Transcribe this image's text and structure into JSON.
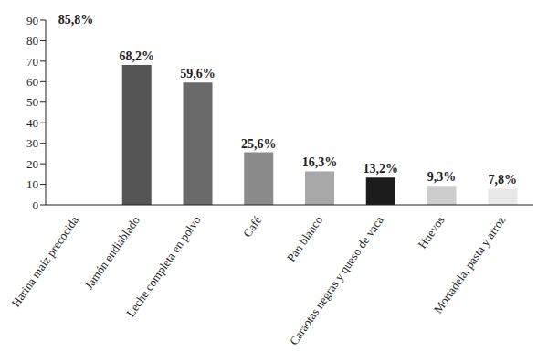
{
  "chart_data": {
    "type": "bar",
    "categories": [
      "Harina maíz precocida",
      "Jamón endiablado",
      "Leche completa en polvo",
      "Café",
      "Pan blanco",
      "Caraotas negras y queso de vaca",
      "Huevos",
      "Mortadela, pasta y arroz"
    ],
    "values": [
      85.8,
      68.2,
      59.6,
      25.6,
      16.3,
      13.2,
      9.3,
      7.8
    ],
    "value_labels": [
      "85,8%",
      "68,2%",
      "59,6%",
      "25,6%",
      "16,3%",
      "13,2%",
      "9,3%",
      "7,8%"
    ],
    "data_labels": true,
    "colors": [
      "#ffffff",
      "#555555",
      "#6a6a6a",
      "#8a8a8a",
      "#a8a8a8",
      "#1c1c1c",
      "#cccccc",
      "#e8e8e8"
    ],
    "ylim": [
      0,
      90
    ],
    "yticks": [
      0,
      10,
      20,
      30,
      40,
      50,
      60,
      70,
      80,
      90
    ],
    "grid": false
  }
}
